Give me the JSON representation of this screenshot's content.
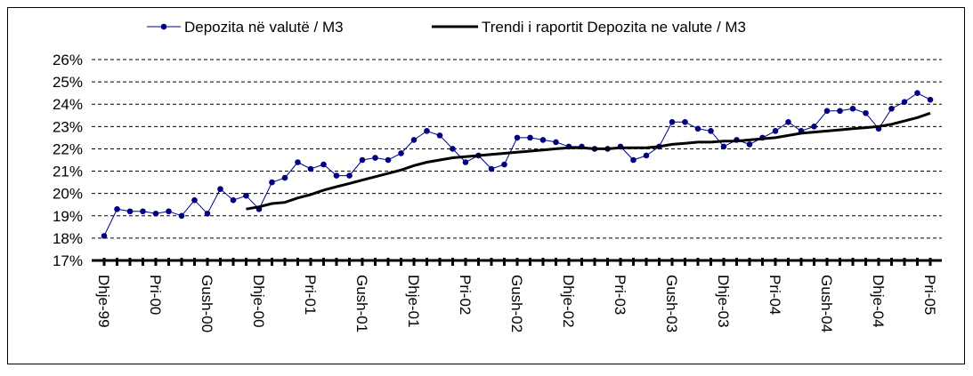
{
  "chart_data": {
    "type": "line",
    "categories": [
      "Dhje-99",
      null,
      null,
      null,
      "Pri-00",
      null,
      null,
      null,
      "Gush-00",
      null,
      null,
      null,
      "Dhje-00",
      null,
      null,
      null,
      "Pri-01",
      null,
      null,
      null,
      "Gush-01",
      null,
      null,
      null,
      "Dhje-01",
      null,
      null,
      null,
      "Pri-02",
      null,
      null,
      null,
      "Gush-02",
      null,
      null,
      null,
      "Dhje-02",
      null,
      null,
      null,
      "Pri-03",
      null,
      null,
      null,
      "Gush-03",
      null,
      null,
      null,
      "Dhje-03",
      null,
      null,
      null,
      "Pri-04",
      null,
      null,
      null,
      "Gush-04",
      null,
      null,
      null,
      "Dhje-04",
      null,
      null,
      null,
      "Pri-05"
    ],
    "series": [
      {
        "name": "Depozita në valutë / M3",
        "color": "#000080",
        "marker": "circle",
        "values": [
          18.1,
          19.3,
          19.2,
          19.2,
          19.1,
          19.2,
          19.0,
          19.7,
          19.1,
          20.2,
          19.7,
          19.9,
          19.3,
          20.5,
          20.7,
          21.4,
          21.1,
          21.3,
          20.8,
          20.8,
          21.5,
          21.6,
          21.5,
          21.8,
          22.4,
          22.8,
          22.6,
          22.0,
          21.4,
          21.7,
          21.1,
          21.3,
          22.5,
          22.5,
          22.4,
          22.3,
          22.1,
          22.1,
          22.0,
          22.0,
          22.1,
          21.5,
          21.7,
          22.1,
          23.2,
          23.2,
          22.9,
          22.8,
          22.1,
          22.4,
          22.2,
          22.5,
          22.8,
          23.2,
          22.8,
          23.0,
          23.7,
          23.7,
          23.8,
          23.6,
          22.9,
          23.8,
          24.1,
          24.5,
          24.2
        ]
      },
      {
        "name": "Trendi i raportit Depozita ne valute / M3",
        "color": "#000000",
        "marker": "none",
        "values": [
          null,
          null,
          null,
          null,
          null,
          null,
          null,
          null,
          null,
          null,
          null,
          19.3,
          19.4,
          19.55,
          19.6,
          19.8,
          19.95,
          20.15,
          20.3,
          20.45,
          20.6,
          20.75,
          20.9,
          21.05,
          21.25,
          21.4,
          21.5,
          21.6,
          21.65,
          21.7,
          21.75,
          21.8,
          21.85,
          21.9,
          21.95,
          22.0,
          22.05,
          22.05,
          22.0,
          22.0,
          22.05,
          22.05,
          22.05,
          22.1,
          22.2,
          22.25,
          22.3,
          22.3,
          22.35,
          22.35,
          22.4,
          22.45,
          22.5,
          22.6,
          22.7,
          22.75,
          22.8,
          22.85,
          22.9,
          22.95,
          23.0,
          23.1,
          23.25,
          23.4,
          23.6
        ]
      }
    ],
    "ylim": [
      17,
      26
    ],
    "yticks": [
      {
        "value": 17,
        "label": "17%"
      },
      {
        "value": 18,
        "label": "18%"
      },
      {
        "value": 19,
        "label": "19%"
      },
      {
        "value": 20,
        "label": "20%"
      },
      {
        "value": 21,
        "label": "21%"
      },
      {
        "value": 22,
        "label": "22%"
      },
      {
        "value": 23,
        "label": "23%"
      },
      {
        "value": 24,
        "label": "24%"
      },
      {
        "value": 25,
        "label": "25%"
      },
      {
        "value": 26,
        "label": "26%"
      }
    ],
    "grid": true,
    "legend": "top"
  }
}
